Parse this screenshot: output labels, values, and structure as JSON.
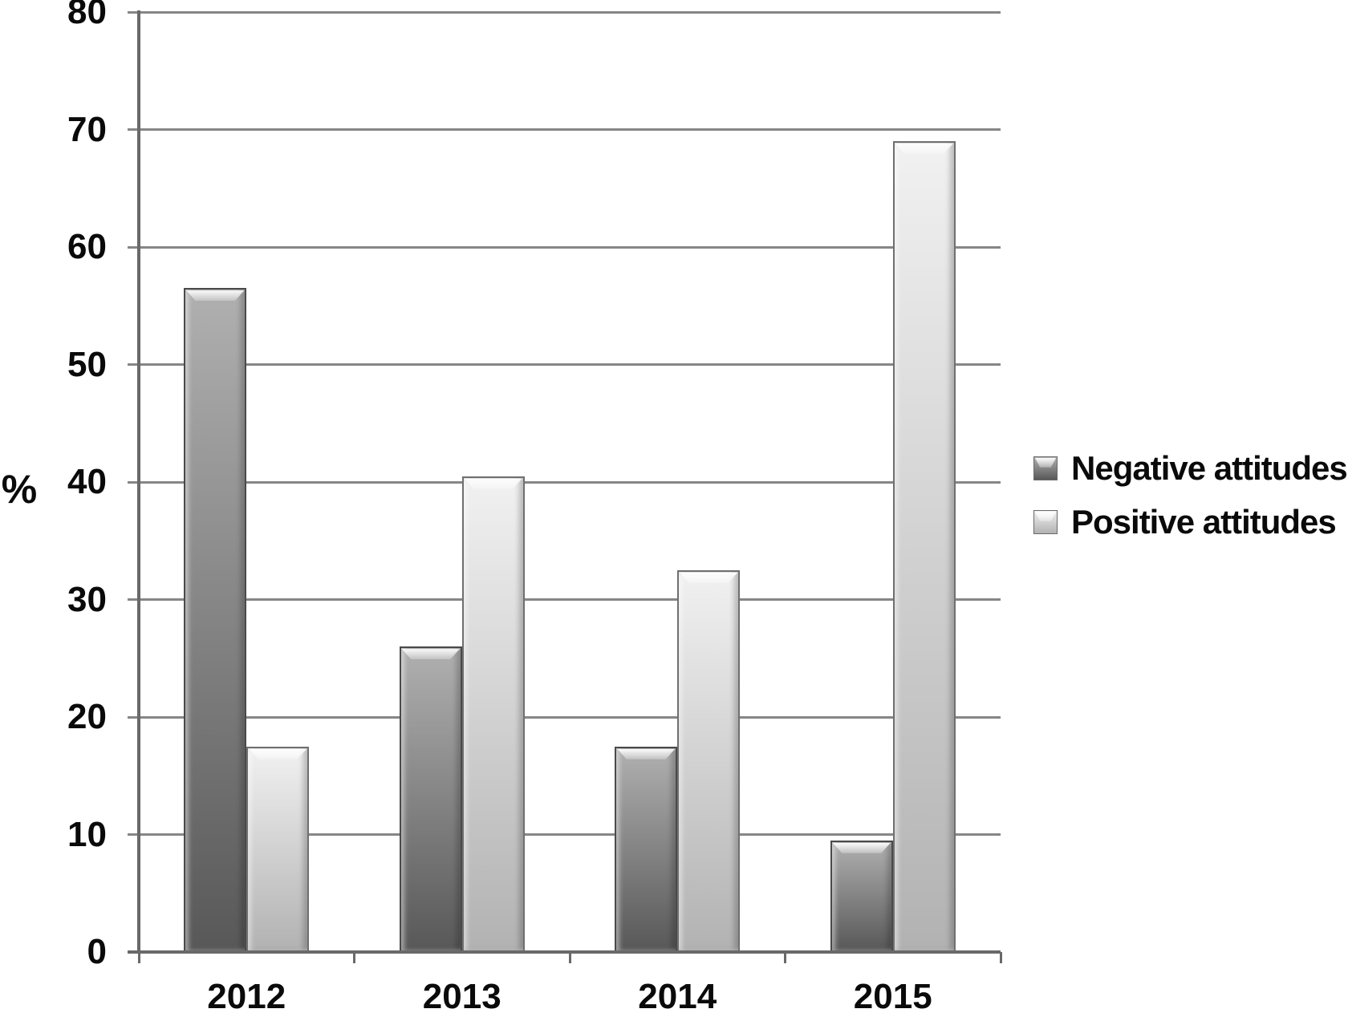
{
  "chart_data": {
    "type": "bar",
    "categories": [
      "2012",
      "2013",
      "2014",
      "2015"
    ],
    "series": [
      {
        "name": "Negative attitudes",
        "values": [
          56.5,
          26,
          17.5,
          9.5
        ],
        "color_top": "#b0b0b0",
        "color_bottom": "#585858"
      },
      {
        "name": "Positive attitudes",
        "values": [
          17.5,
          40.5,
          32.5,
          69
        ],
        "color_top": "#f1f1f1",
        "color_bottom": "#b2b2b2"
      }
    ],
    "ylabel": "%",
    "ylim": [
      0,
      80
    ],
    "yticks": [
      0,
      10,
      20,
      30,
      40,
      50,
      60,
      70,
      80
    ],
    "grid": true,
    "legend_position": "right",
    "gridline_color": "#868686",
    "axis_color": "#696969",
    "text_color": "#0a0a0a"
  }
}
